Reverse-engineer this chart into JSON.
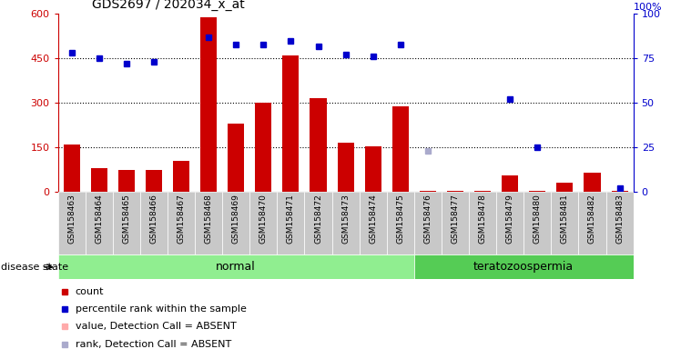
{
  "title": "GDS2697 / 202034_x_at",
  "samples": [
    "GSM158463",
    "GSM158464",
    "GSM158465",
    "GSM158466",
    "GSM158467",
    "GSM158468",
    "GSM158469",
    "GSM158470",
    "GSM158471",
    "GSM158472",
    "GSM158473",
    "GSM158474",
    "GSM158475",
    "GSM158476",
    "GSM158477",
    "GSM158478",
    "GSM158479",
    "GSM158480",
    "GSM158481",
    "GSM158482",
    "GSM158483"
  ],
  "count_values": [
    160,
    80,
    75,
    75,
    105,
    590,
    230,
    300,
    460,
    315,
    165,
    155,
    290,
    5,
    5,
    5,
    55,
    5,
    30,
    65,
    5
  ],
  "rank_values": [
    78,
    75,
    72,
    73,
    null,
    87,
    83,
    83,
    85,
    82,
    77,
    76,
    83,
    null,
    null,
    null,
    52,
    25,
    null,
    null,
    2
  ],
  "absent_count": [
    null,
    null,
    null,
    null,
    null,
    null,
    null,
    null,
    null,
    null,
    null,
    null,
    null,
    null,
    null,
    null,
    null,
    null,
    null,
    null,
    null
  ],
  "absent_rank": [
    null,
    null,
    null,
    null,
    null,
    null,
    null,
    null,
    null,
    null,
    null,
    null,
    null,
    23,
    null,
    null,
    null,
    null,
    null,
    null,
    null
  ],
  "disease_state": [
    "normal",
    "normal",
    "normal",
    "normal",
    "normal",
    "normal",
    "normal",
    "normal",
    "normal",
    "normal",
    "normal",
    "normal",
    "normal",
    "teratozoospermia",
    "teratozoospermia",
    "teratozoospermia",
    "teratozoospermia",
    "teratozoospermia",
    "teratozoospermia",
    "teratozoospermia",
    "teratozoospermia"
  ],
  "ylim_left": [
    0,
    600
  ],
  "ylim_right": [
    0,
    100
  ],
  "yticks_left": [
    0,
    150,
    300,
    450,
    600
  ],
  "yticks_right": [
    0,
    25,
    50,
    75,
    100
  ],
  "bar_color": "#cc0000",
  "rank_color": "#0000cc",
  "absent_count_color": "#ffaaaa",
  "absent_rank_color": "#aaaacc",
  "normal_bg": "#90ee90",
  "terato_bg": "#55cc55",
  "sample_bg": "#c8c8c8",
  "count_label": "count",
  "rank_label": "percentile rank within the sample",
  "absent_count_label": "value, Detection Call = ABSENT",
  "absent_rank_label": "rank, Detection Call = ABSENT",
  "disease_label": "disease state",
  "normal_label": "normal",
  "terato_label": "teratozoospermia",
  "right_axis_top_label": "100%"
}
